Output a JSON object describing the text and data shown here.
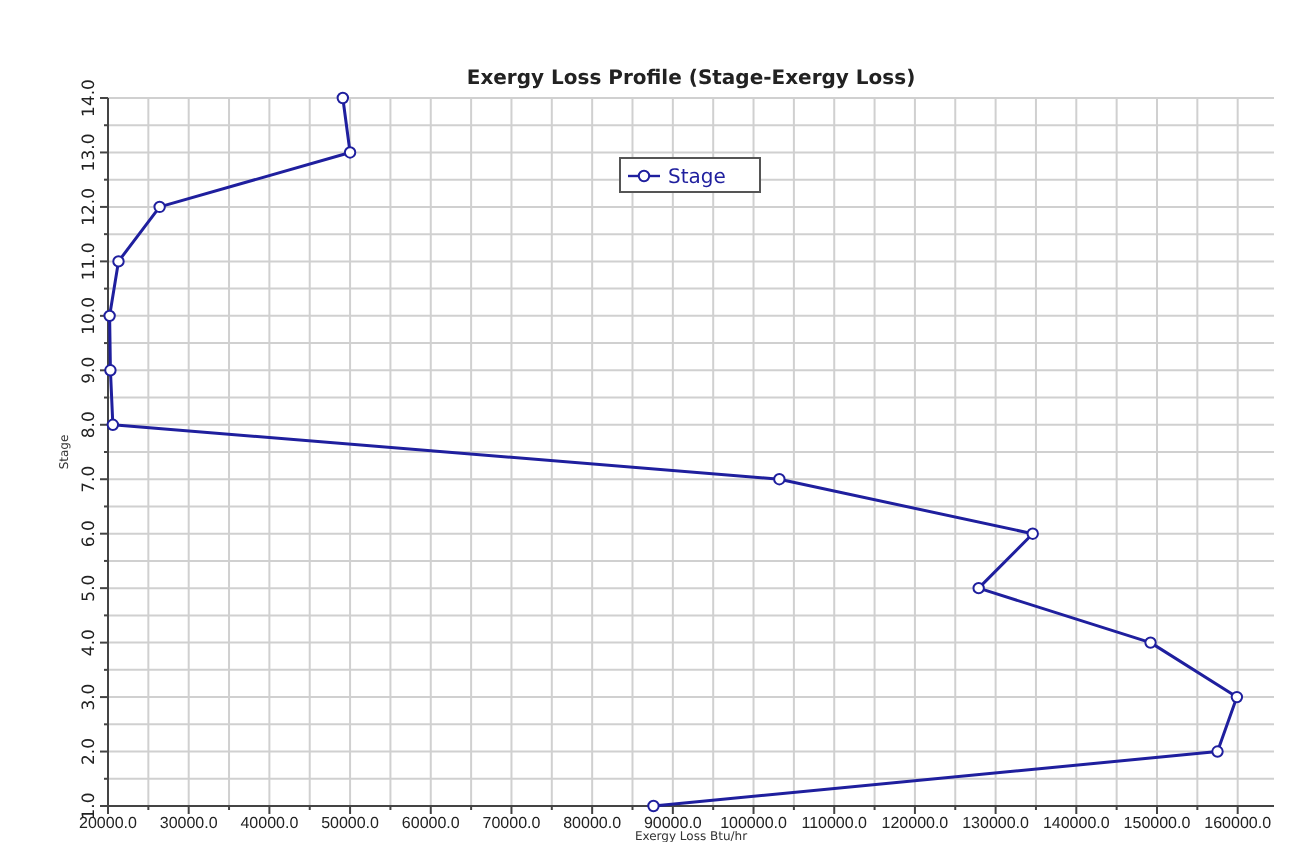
{
  "chart_data": {
    "type": "line",
    "title": "Exergy Loss Profile (Stage-Exergy Loss)",
    "xlabel": "Exergy Loss Btu/hr",
    "ylabel": "Stage",
    "series": [
      {
        "name": "Stage",
        "color": "#1f1f9e",
        "x": [
          87600,
          157500,
          159900,
          149200,
          127900,
          134600,
          103200,
          20600,
          20300,
          20200,
          21300,
          26400,
          50000,
          49100
        ],
        "values": [
          1,
          2,
          3,
          4,
          5,
          6,
          7,
          8,
          9,
          10,
          11,
          12,
          13,
          14
        ]
      }
    ],
    "xlim": [
      20000,
      164500
    ],
    "xticks": [
      {
        "value": 20000,
        "label": "20000.0"
      },
      {
        "value": 25000,
        "label": null
      },
      {
        "value": 30000,
        "label": "30000.0"
      },
      {
        "value": 35000,
        "label": null
      },
      {
        "value": 40000,
        "label": "40000.0"
      },
      {
        "value": 45000,
        "label": null
      },
      {
        "value": 50000,
        "label": "50000.0"
      },
      {
        "value": 55000,
        "label": null
      },
      {
        "value": 60000,
        "label": "60000.0"
      },
      {
        "value": 65000,
        "label": null
      },
      {
        "value": 70000,
        "label": "70000.0"
      },
      {
        "value": 75000,
        "label": null
      },
      {
        "value": 80000,
        "label": "80000.0"
      },
      {
        "value": 85000,
        "label": null
      },
      {
        "value": 90000,
        "label": "90000.0"
      },
      {
        "value": 95000,
        "label": null
      },
      {
        "value": 100000,
        "label": "100000.0"
      },
      {
        "value": 105000,
        "label": null
      },
      {
        "value": 110000,
        "label": "110000.0"
      },
      {
        "value": 115000,
        "label": null
      },
      {
        "value": 120000,
        "label": "120000.0"
      },
      {
        "value": 125000,
        "label": null
      },
      {
        "value": 130000,
        "label": "130000.0"
      },
      {
        "value": 135000,
        "label": null
      },
      {
        "value": 140000,
        "label": "140000.0"
      },
      {
        "value": 145000,
        "label": null
      },
      {
        "value": 150000,
        "label": "150000.0"
      },
      {
        "value": 155000,
        "label": null
      },
      {
        "value": 160000,
        "label": "160000.0"
      }
    ],
    "ylim": [
      1,
      14
    ],
    "yticks": [
      {
        "value": 1,
        "label": "1.0"
      },
      {
        "value": 1.5,
        "label": null
      },
      {
        "value": 2,
        "label": "2.0"
      },
      {
        "value": 2.5,
        "label": null
      },
      {
        "value": 3,
        "label": "3.0"
      },
      {
        "value": 3.5,
        "label": null
      },
      {
        "value": 4,
        "label": "4.0"
      },
      {
        "value": 4.5,
        "label": null
      },
      {
        "value": 5,
        "label": "5.0"
      },
      {
        "value": 5.5,
        "label": null
      },
      {
        "value": 6,
        "label": "6.0"
      },
      {
        "value": 6.5,
        "label": null
      },
      {
        "value": 7,
        "label": "7.0"
      },
      {
        "value": 7.5,
        "label": null
      },
      {
        "value": 8,
        "label": "8.0"
      },
      {
        "value": 8.5,
        "label": null
      },
      {
        "value": 9,
        "label": "9.0"
      },
      {
        "value": 9.5,
        "label": null
      },
      {
        "value": 10,
        "label": "10.0"
      },
      {
        "value": 10.5,
        "label": null
      },
      {
        "value": 11,
        "label": "11.0"
      },
      {
        "value": 11.5,
        "label": null
      },
      {
        "value": 12,
        "label": "12.0"
      },
      {
        "value": 12.5,
        "label": null
      },
      {
        "value": 13,
        "label": "13.0"
      },
      {
        "value": 13.5,
        "label": null
      },
      {
        "value": 14,
        "label": "14.0"
      }
    ],
    "grid": true,
    "legend": "top",
    "marker": "circle",
    "line_style": "solid"
  }
}
